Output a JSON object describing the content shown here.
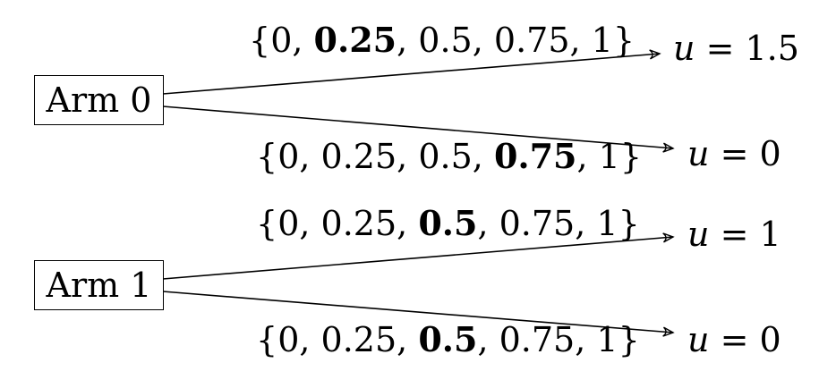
{
  "arms": [
    {
      "label": "Arm 0",
      "branches": [
        {
          "set": [
            "0",
            "0.25",
            "0.5",
            "0.75",
            "1"
          ],
          "selected_index": 1,
          "utility_var": "u",
          "utility_value": "1.5"
        },
        {
          "set": [
            "0",
            "0.25",
            "0.5",
            "0.75",
            "1"
          ],
          "selected_index": 3,
          "utility_var": "u",
          "utility_value": "0"
        }
      ]
    },
    {
      "label": "Arm 1",
      "branches": [
        {
          "set": [
            "0",
            "0.25",
            "0.5",
            "0.75",
            "1"
          ],
          "selected_index": 2,
          "utility_var": "u",
          "utility_value": "1"
        },
        {
          "set": [
            "0",
            "0.25",
            "0.5",
            "0.75",
            "1"
          ],
          "selected_index": 2,
          "utility_var": "u",
          "utility_value": "0"
        }
      ]
    }
  ]
}
